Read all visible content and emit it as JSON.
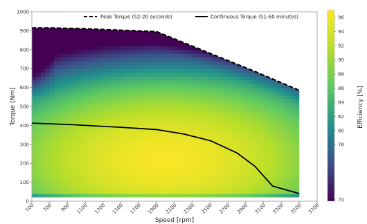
{
  "chart_data": {
    "type": "heatmap",
    "subtype": "efficiency-contour-map",
    "xlabel": "Speed [rpm]",
    "ylabel": "Torque [Nm]",
    "colorbar_label": "Efficiency [%]",
    "xlim": [
      500,
      3700
    ],
    "ylim": [
      0,
      1000
    ],
    "colorbar_range": [
      70,
      97
    ],
    "x_ticks": [
      500,
      700,
      900,
      1100,
      1300,
      1500,
      1700,
      1900,
      2100,
      2300,
      2500,
      2700,
      2900,
      3100,
      3300,
      3500,
      3700
    ],
    "y_ticks": [
      0,
      100,
      200,
      300,
      400,
      500,
      600,
      700,
      800,
      900,
      1000
    ],
    "colorbar_ticks": [
      70,
      78,
      80,
      82,
      84,
      86,
      88,
      90,
      92,
      94,
      96
    ],
    "grid": false,
    "legend_placement": "top-right",
    "series": [
      {
        "name": "Peak Torque (S2-20 seconds)",
        "style": "dashed",
        "x": [
          500,
          700,
          1100,
          1900,
          2500,
          3000,
          3500
        ],
        "y": [
          915,
          915,
          910,
          895,
          780,
          685,
          585
        ]
      },
      {
        "name": "Continuous Torque (S1-60 minutes)",
        "style": "solid",
        "x": [
          500,
          900,
          1500,
          1900,
          2200,
          2500,
          2800,
          3000,
          3200,
          3500
        ],
        "y": [
          412,
          405,
          390,
          378,
          355,
          320,
          255,
          185,
          80,
          40
        ]
      }
    ],
    "efficiency_field": {
      "peak_region": {
        "x": 2000,
        "y": 220,
        "value": 96
      },
      "low_region": {
        "x": 600,
        "y": 800,
        "value": 72
      }
    },
    "colors": {
      "colormap": [
        "#440154",
        "#3b528b",
        "#21918c",
        "#5ec962",
        "#b5de2b",
        "#fde725"
      ],
      "peak_line": "#000000",
      "continuous_line": "#000000"
    }
  }
}
